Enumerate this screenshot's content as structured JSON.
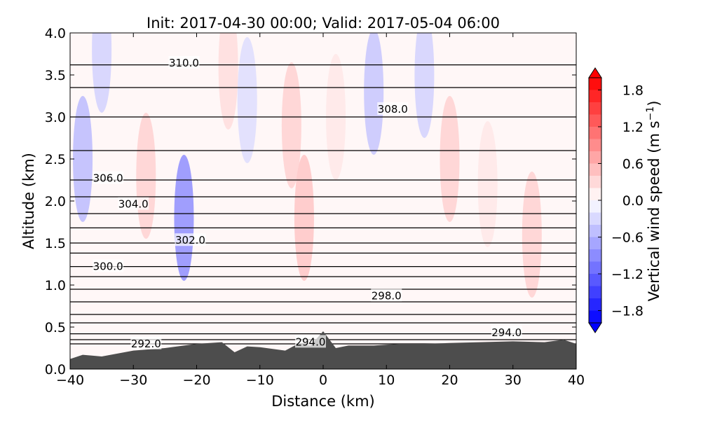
{
  "chart_data": {
    "type": "cross-section",
    "title": "Init: 2017-04-30 00:00; Valid: 2017-05-04 06:00",
    "x_label": "Distance (km)",
    "y_label": "Altitude (km)",
    "xlim": [
      -40,
      40
    ],
    "ylim": [
      0,
      4
    ],
    "xticks": [
      {
        "value": -40,
        "label": "−40"
      },
      {
        "value": -30,
        "label": "−30"
      },
      {
        "value": -20,
        "label": "−20"
      },
      {
        "value": -10,
        "label": "−10"
      },
      0,
      10,
      20,
      30,
      40
    ],
    "yticks": [
      {
        "value": 0,
        "label": "0.0"
      },
      0.5,
      {
        "value": 1,
        "label": "1.0"
      },
      1.5,
      {
        "value": 2,
        "label": "2.0"
      },
      2.5,
      {
        "value": 3,
        "label": "3.0"
      },
      3.5,
      {
        "value": 4,
        "label": "4.0"
      }
    ],
    "colorbar": {
      "label": "Vertical wind speed (m s",
      "label_sup": "−1",
      "label_end": ")",
      "lim": [
        -2,
        2
      ],
      "levels": [
        -2,
        -1.8,
        -1.6,
        -1.4,
        -1.2,
        -1,
        -0.8,
        -0.6,
        -0.4,
        -0.2,
        0,
        0.2,
        0.4,
        0.6,
        0.8,
        1,
        1.2,
        1.4,
        1.6,
        1.8,
        2
      ],
      "ticks": [
        1.8,
        1.2,
        0.6,
        {
          "value": 0,
          "label": "0.0"
        },
        {
          "value": -0.6,
          "label": "−0.6"
        },
        {
          "value": -1.2,
          "label": "−1.2"
        },
        {
          "value": -1.8,
          "label": "−1.8"
        }
      ]
    },
    "vertical_wind": {
      "x": [
        -22,
        -38,
        -28,
        -3,
        -5,
        8,
        16,
        20,
        33,
        -15,
        -35,
        2,
        -12,
        26
      ],
      "y": [
        1.8,
        2.5,
        2.3,
        1.8,
        2.9,
        3.3,
        3.5,
        2.5,
        1.6,
        3.6,
        3.8,
        3.0,
        3.2,
        2.2
      ],
      "w": [
        -1.0,
        -0.6,
        0.4,
        0.5,
        0.4,
        -0.5,
        -0.4,
        0.4,
        0.4,
        0.3,
        -0.4,
        0.2,
        -0.3,
        0.2
      ]
    },
    "isentropes": {
      "levels": [
        292,
        293,
        294,
        295,
        296,
        297,
        298,
        299,
        300,
        301,
        302,
        303,
        304,
        305,
        306,
        307,
        308,
        309,
        310
      ],
      "heights": [
        0.3,
        0.35,
        0.42,
        0.55,
        0.65,
        0.8,
        0.95,
        1.1,
        1.22,
        1.38,
        1.5,
        1.68,
        1.85,
        2.05,
        2.25,
        2.6,
        3.0,
        3.35,
        3.62
      ]
    },
    "contour_labels": [
      {
        "value": 310,
        "label": "310.0",
        "x": -22,
        "y": 3.65
      },
      {
        "value": 308,
        "label": "308.0",
        "x": 11,
        "y": 3.1
      },
      {
        "value": 306,
        "label": "306.0",
        "x": -34,
        "y": 2.28
      },
      {
        "value": 304,
        "label": "304.0",
        "x": -30,
        "y": 1.97
      },
      {
        "value": 302,
        "label": "302.0",
        "x": -21,
        "y": 1.54
      },
      {
        "value": 300,
        "label": "300.0",
        "x": -34,
        "y": 1.23
      },
      {
        "value": 298,
        "label": "298.0",
        "x": 10,
        "y": 0.88
      },
      {
        "value": 294,
        "label": "294.0",
        "x": 29,
        "y": 0.44
      },
      {
        "value": 294,
        "label": "294.0",
        "x": -2,
        "y": 0.33
      },
      {
        "value": 292,
        "label": "292.0",
        "x": -28,
        "y": 0.31
      }
    ],
    "terrain": {
      "x": [
        -40,
        -38,
        -35,
        -30,
        -25,
        -20,
        -16,
        -14,
        -12,
        -10,
        -6,
        -4,
        -2,
        0,
        2,
        4,
        8,
        12,
        16,
        20,
        30,
        35,
        38,
        40
      ],
      "height": [
        0.12,
        0.17,
        0.15,
        0.22,
        0.25,
        0.3,
        0.32,
        0.2,
        0.27,
        0.26,
        0.22,
        0.3,
        0.28,
        0.45,
        0.25,
        0.28,
        0.28,
        0.3,
        0.3,
        0.31,
        0.33,
        0.32,
        0.35,
        0.3
      ],
      "color": "#4d4d4d"
    }
  }
}
